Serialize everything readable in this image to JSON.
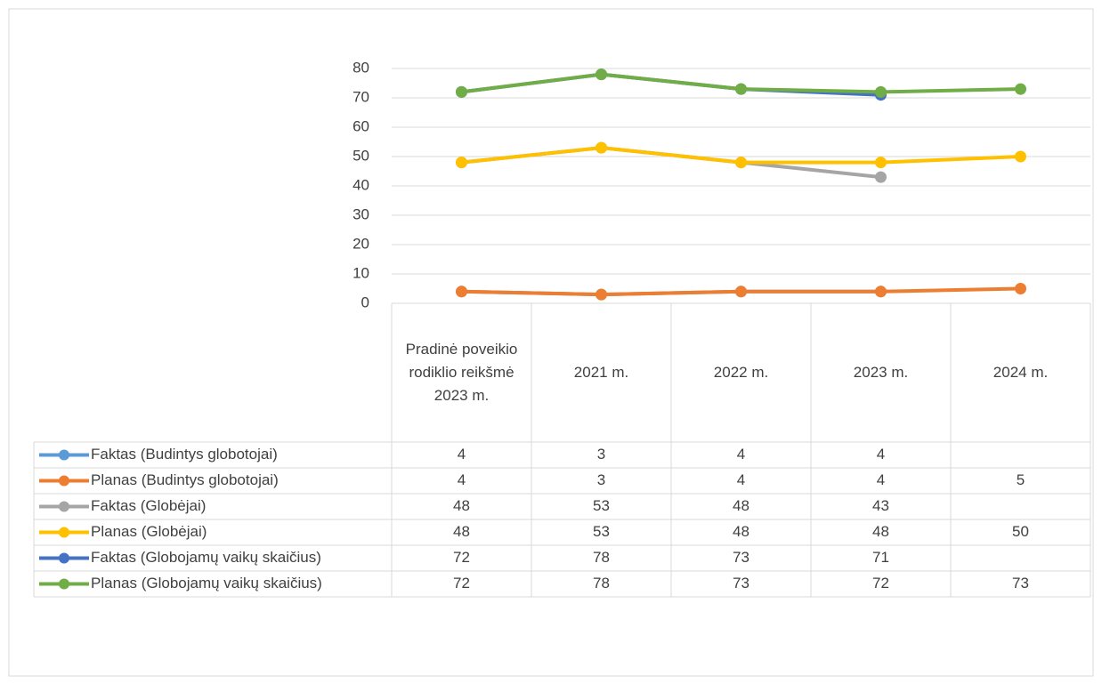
{
  "chart_data": {
    "type": "line",
    "categories": [
      "Pradinė poveikio rodiklio reikšmė 2023 m.",
      "2021 m.",
      "2022 m.",
      "2023 m.",
      "2024 m."
    ],
    "series": [
      {
        "name": "Faktas (Budintys globotojai)",
        "color": "#5b9bd5",
        "values": [
          4,
          3,
          4,
          4,
          null
        ]
      },
      {
        "name": "Planas (Budintys globotojai)",
        "color": "#ed7d31",
        "values": [
          4,
          3,
          4,
          4,
          5
        ]
      },
      {
        "name": "Faktas (Globėjai)",
        "color": "#a5a5a5",
        "values": [
          48,
          53,
          48,
          43,
          null
        ]
      },
      {
        "name": "Planas (Globėjai)",
        "color": "#ffc000",
        "values": [
          48,
          53,
          48,
          48,
          50
        ]
      },
      {
        "name": "Faktas (Globojamų vaikų skaičius)",
        "color": "#4472c4",
        "values": [
          72,
          78,
          73,
          71,
          null
        ]
      },
      {
        "name": "Planas (Globojamų vaikų skaičius)",
        "color": "#70ad47",
        "values": [
          72,
          78,
          73,
          72,
          73
        ]
      }
    ],
    "ylim": [
      0,
      80
    ],
    "yticks": [
      0,
      10,
      20,
      30,
      40,
      50,
      60,
      70,
      80
    ],
    "grid": true,
    "data_table": true
  }
}
